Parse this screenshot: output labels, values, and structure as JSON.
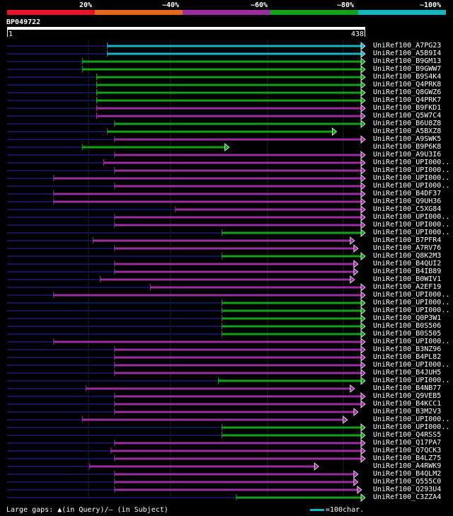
{
  "scale": {
    "labels": [
      "20%",
      "~40%",
      "~60%",
      "~80%",
      "~100%"
    ],
    "colors": [
      "#e8142a",
      "#e36a1a",
      "#9a2ea0",
      "#12a118",
      "#14b6c4"
    ]
  },
  "query": {
    "id": "BP049722",
    "start": "1",
    "end": "438"
  },
  "rows": [
    {
      "name": "UniRef100_A7PG23",
      "s": 0.28,
      "e": 1.0,
      "c": 4
    },
    {
      "name": "UniRef100_A5B9I4",
      "s": 0.28,
      "e": 1.0,
      "c": 4
    },
    {
      "name": "UniRef100_B9GM13",
      "s": 0.21,
      "e": 1.0,
      "c": 3
    },
    {
      "name": "UniRef100_B9GWW7",
      "s": 0.21,
      "e": 1.0,
      "c": 3
    },
    {
      "name": "UniRef100_B9S4K4",
      "s": 0.25,
      "e": 1.0,
      "c": 3
    },
    {
      "name": "UniRef100_Q4PRK8",
      "s": 0.25,
      "e": 1.0,
      "c": 3
    },
    {
      "name": "UniRef100_Q8GWZ6",
      "s": 0.25,
      "e": 1.0,
      "c": 3
    },
    {
      "name": "UniRef100_Q4PRK7",
      "s": 0.25,
      "e": 1.0,
      "c": 3
    },
    {
      "name": "UniRef100_B9FKD1",
      "s": 0.25,
      "e": 1.0,
      "c": 2
    },
    {
      "name": "UniRef100_Q5W7C4",
      "s": 0.25,
      "e": 1.0,
      "c": 2
    },
    {
      "name": "UniRef100_B6U8Z8",
      "s": 0.3,
      "e": 1.0,
      "c": 3
    },
    {
      "name": "UniRef100_A5BXZ8",
      "s": 0.28,
      "e": 0.92,
      "c": 3
    },
    {
      "name": "UniRef100_A9SWK5",
      "s": 0.3,
      "e": 1.0,
      "c": 2
    },
    {
      "name": "UniRef100_B9P6K8",
      "s": 0.21,
      "e": 0.62,
      "c": 3
    },
    {
      "name": "UniRef100_A9U3I6",
      "s": 0.3,
      "e": 1.0,
      "c": 2
    },
    {
      "name": "UniRef100_UPI000..",
      "s": 0.27,
      "e": 1.0,
      "c": 2
    },
    {
      "name": "UniRef100_UPI000..",
      "s": 0.3,
      "e": 1.0,
      "c": 2
    },
    {
      "name": "UniRef100_UPI000..",
      "s": 0.13,
      "e": 1.0,
      "c": 2
    },
    {
      "name": "UniRef100_UPI000..",
      "s": 0.3,
      "e": 1.0,
      "c": 2
    },
    {
      "name": "UniRef100_B4DF37",
      "s": 0.13,
      "e": 1.0,
      "c": 2
    },
    {
      "name": "UniRef100_Q9UH36",
      "s": 0.13,
      "e": 1.0,
      "c": 2
    },
    {
      "name": "UniRef100_C5XG84",
      "s": 0.47,
      "e": 1.0,
      "c": 2
    },
    {
      "name": "UniRef100_UPI000..",
      "s": 0.3,
      "e": 1.0,
      "c": 2
    },
    {
      "name": "UniRef100_UPI000..",
      "s": 0.3,
      "e": 1.0,
      "c": 2
    },
    {
      "name": "UniRef100_UPI000..",
      "s": 0.6,
      "e": 1.0,
      "c": 3
    },
    {
      "name": "UniRef100_B7PFR4",
      "s": 0.24,
      "e": 0.97,
      "c": 2
    },
    {
      "name": "UniRef100_A7RV76",
      "s": 0.3,
      "e": 0.98,
      "c": 2
    },
    {
      "name": "UniRef100_Q8K2M3",
      "s": 0.6,
      "e": 1.0,
      "c": 3
    },
    {
      "name": "UniRef100_B4QUI2",
      "s": 0.3,
      "e": 0.98,
      "c": 2
    },
    {
      "name": "UniRef100_B4IB89",
      "s": 0.3,
      "e": 0.98,
      "c": 2
    },
    {
      "name": "UniRef100_B0WIV1",
      "s": 0.26,
      "e": 0.97,
      "c": 2
    },
    {
      "name": "UniRef100_A2EF19",
      "s": 0.4,
      "e": 1.0,
      "c": 2
    },
    {
      "name": "UniRef100_UPI000..",
      "s": 0.13,
      "e": 1.0,
      "c": 2
    },
    {
      "name": "UniRef100_UPI000..",
      "s": 0.6,
      "e": 1.0,
      "c": 3
    },
    {
      "name": "UniRef100_UPI000..",
      "s": 0.6,
      "e": 1.0,
      "c": 3
    },
    {
      "name": "UniRef100_Q0P3W1",
      "s": 0.6,
      "e": 1.0,
      "c": 3
    },
    {
      "name": "UniRef100_B0S506",
      "s": 0.6,
      "e": 1.0,
      "c": 3
    },
    {
      "name": "UniRef100_B0S505",
      "s": 0.6,
      "e": 1.0,
      "c": 3
    },
    {
      "name": "UniRef100_UPI000..",
      "s": 0.13,
      "e": 1.0,
      "c": 2
    },
    {
      "name": "UniRef100_B3NZ96",
      "s": 0.3,
      "e": 1.0,
      "c": 2
    },
    {
      "name": "UniRef100_B4PL82",
      "s": 0.3,
      "e": 1.0,
      "c": 2
    },
    {
      "name": "UniRef100_UPI000..",
      "s": 0.3,
      "e": 1.0,
      "c": 2
    },
    {
      "name": "UniRef100_B4JUH5",
      "s": 0.3,
      "e": 1.0,
      "c": 2
    },
    {
      "name": "UniRef100_UPI000..",
      "s": 0.59,
      "e": 1.0,
      "c": 3
    },
    {
      "name": "UniRef100_B4NB77",
      "s": 0.22,
      "e": 0.97,
      "c": 2
    },
    {
      "name": "UniRef100_Q9VEB5",
      "s": 0.3,
      "e": 1.0,
      "c": 2
    },
    {
      "name": "UniRef100_B4KCC1",
      "s": 0.3,
      "e": 1.0,
      "c": 2
    },
    {
      "name": "UniRef100_B3M2V3",
      "s": 0.3,
      "e": 0.98,
      "c": 2
    },
    {
      "name": "UniRef100_UPI000..",
      "s": 0.21,
      "e": 0.95,
      "c": 2
    },
    {
      "name": "UniRef100_UPI000..",
      "s": 0.6,
      "e": 1.0,
      "c": 3
    },
    {
      "name": "UniRef100_Q4RSS5",
      "s": 0.6,
      "e": 1.0,
      "c": 3
    },
    {
      "name": "UniRef100_Q17PA7",
      "s": 0.3,
      "e": 1.0,
      "c": 2
    },
    {
      "name": "UniRef100_Q7QCK3",
      "s": 0.29,
      "e": 1.0,
      "c": 2
    },
    {
      "name": "UniRef100_B4LZ75",
      "s": 0.3,
      "e": 1.0,
      "c": 2
    },
    {
      "name": "UniRef100_A4RWK9",
      "s": 0.23,
      "e": 0.87,
      "c": 2
    },
    {
      "name": "UniRef100_B4QLM2",
      "s": 0.3,
      "e": 0.98,
      "c": 2
    },
    {
      "name": "UniRef100_Q555C0",
      "s": 0.3,
      "e": 0.98,
      "c": 2
    },
    {
      "name": "UniRef100_Q293U4",
      "s": 0.3,
      "e": 0.99,
      "c": 2
    },
    {
      "name": "UniRef100_C3ZZA4",
      "s": 0.64,
      "e": 1.0,
      "c": 3
    }
  ],
  "footer": {
    "legend_text": "Large gaps: ▲(in Query)/– (in Subject)",
    "scale_label": "=100char."
  }
}
